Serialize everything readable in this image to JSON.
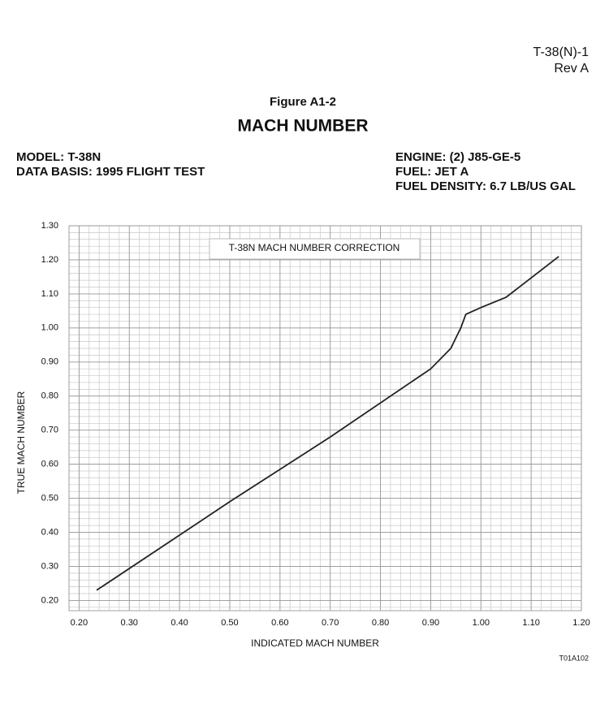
{
  "document": {
    "doc_id": "T-38(N)-1",
    "revision": "Rev A",
    "figure": "Figure A1-2",
    "heading": "MACH NUMBER",
    "model": "MODEL:  T-38N",
    "data_basis": "DATA BASIS:  1995 FLIGHT TEST",
    "engine": "ENGINE:  (2) J85-GE-5",
    "fuel": "FUEL:  JET A",
    "fuel_density": "FUEL DENSITY:  6.7 LB/US GAL",
    "figure_code": "T01A102"
  },
  "chart_data": {
    "type": "line",
    "title": "T-38N MACH NUMBER CORRECTION",
    "x_label": "INDICATED MACH NUMBER",
    "y_label": "TRUE MACH NUMBER",
    "x": [
      0.235,
      0.5,
      0.7,
      0.88,
      0.9,
      0.94,
      0.95,
      0.96,
      0.97,
      1.0,
      1.05,
      1.155
    ],
    "values": [
      0.23,
      0.49,
      0.68,
      0.86,
      0.88,
      0.94,
      0.97,
      1.0,
      1.04,
      1.06,
      1.09,
      1.21
    ],
    "color": "#222222",
    "xlim": [
      0.18,
      1.2
    ],
    "ylim": [
      0.17,
      1.3
    ],
    "xticks": [
      {
        "value": 0.2,
        "label": "0.20"
      },
      {
        "value": 0.3,
        "label": "0.30"
      },
      {
        "value": 0.4,
        "label": "0.40"
      },
      {
        "value": 0.5,
        "label": "0.50"
      },
      {
        "value": 0.6,
        "label": "0.60"
      },
      {
        "value": 0.7,
        "label": "0.70"
      },
      {
        "value": 0.8,
        "label": "0.80"
      },
      {
        "value": 0.9,
        "label": "0.90"
      },
      {
        "value": 1.0,
        "label": "1.00"
      },
      {
        "value": 1.1,
        "label": "1.10"
      },
      {
        "value": 1.2,
        "label": "1.20"
      }
    ],
    "yticks": [
      {
        "value": 0.2,
        "label": "0.20"
      },
      {
        "value": 0.3,
        "label": "0.30"
      },
      {
        "value": 0.4,
        "label": "0.40"
      },
      {
        "value": 0.5,
        "label": "0.50"
      },
      {
        "value": 0.6,
        "label": "0.60"
      },
      {
        "value": 0.7,
        "label": "0.70"
      },
      {
        "value": 0.8,
        "label": "0.80"
      },
      {
        "value": 0.9,
        "label": "0.90"
      },
      {
        "value": 1.0,
        "label": "1.00"
      },
      {
        "value": 1.1,
        "label": "1.10"
      },
      {
        "value": 1.2,
        "label": "1.20"
      },
      {
        "value": 1.3,
        "label": "1.30"
      }
    ],
    "grid": true
  }
}
